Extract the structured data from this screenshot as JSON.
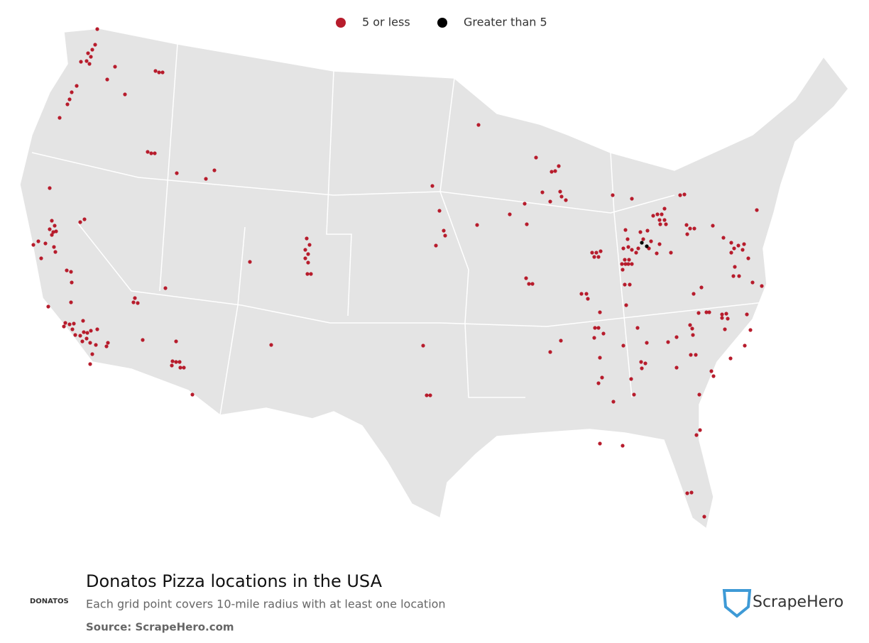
{
  "legend": {
    "items": [
      {
        "label": "5 or less",
        "color": "#b71c2c"
      },
      {
        "label": "Greater than 5",
        "color": "#000000"
      }
    ]
  },
  "footer": {
    "title": "Donatos Pizza locations in the USA",
    "subtitle": "Each grid point covers 10-mile radius with at least one location",
    "source": "Source: ScrapeHero.com",
    "logo_text": "DONATOS",
    "brand": "ScrapeHero"
  }
}
